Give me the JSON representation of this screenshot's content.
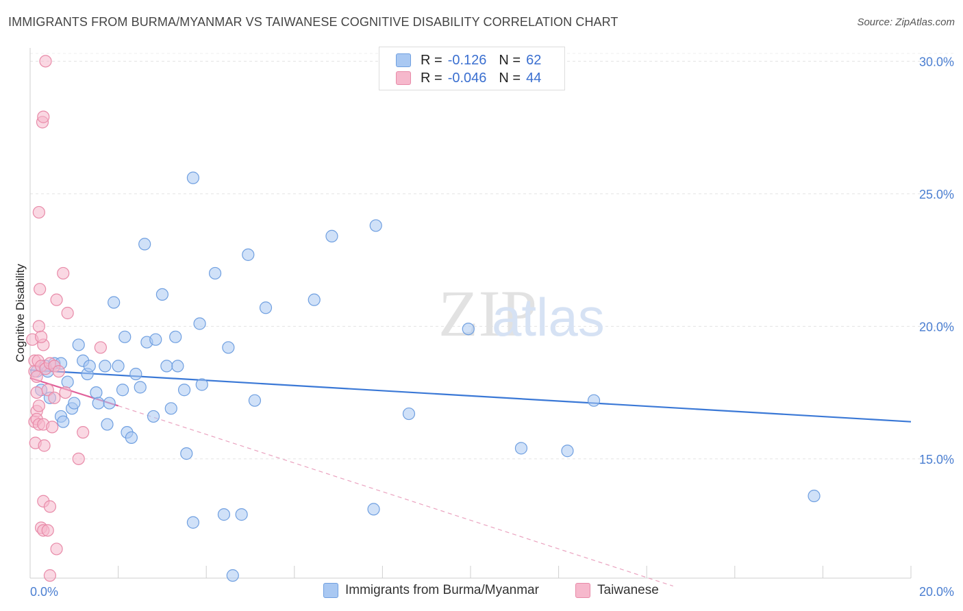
{
  "title": "IMMIGRANTS FROM BURMA/MYANMAR VS TAIWANESE COGNITIVE DISABILITY CORRELATION CHART",
  "source": "Source: ZipAtlas.com",
  "legend": {
    "r_label": "R =",
    "n_label": "N =",
    "items": [
      {
        "r": "-0.126",
        "n": "62",
        "color": "#a9c8f2",
        "border": "#6f9fe0"
      },
      {
        "r": "-0.046",
        "n": "44",
        "color": "#f6b8cc",
        "border": "#e88aa8"
      }
    ]
  },
  "bottom_legend": [
    "Immigrants from Burma/Myanmar",
    "Taiwanese"
  ],
  "chart_data": {
    "type": "scatter",
    "title": "IMMIGRANTS FROM BURMA/MYANMAR VS TAIWANESE COGNITIVE DISABILITY CORRELATION CHART",
    "xlabel": "",
    "ylabel": "Cognitive Disability",
    "xlim": [
      0,
      20
    ],
    "ylim": [
      10.5,
      30.5
    ],
    "x_tick_labels": [
      "0.0%",
      "20.0%"
    ],
    "y_ticks": [
      15,
      20,
      25,
      30
    ],
    "y_tick_labels": [
      "15.0%",
      "20.0%",
      "25.0%",
      "30.0%"
    ],
    "series": [
      {
        "name": "Immigrants from Burma/Myanmar",
        "color": "#a9c8f2",
        "stroke": "#6f9fe0",
        "trend": {
          "x0": 0,
          "y0": 18.35,
          "x1": 20,
          "y1": 16.4,
          "color": "#3a78d6"
        },
        "points": [
          [
            0.15,
            18.3
          ],
          [
            0.25,
            17.6
          ],
          [
            0.35,
            18.5
          ],
          [
            0.4,
            18.3
          ],
          [
            0.45,
            17.3
          ],
          [
            0.55,
            18.6
          ],
          [
            0.7,
            18.6
          ],
          [
            0.7,
            16.6
          ],
          [
            0.75,
            16.4
          ],
          [
            0.85,
            17.9
          ],
          [
            0.95,
            16.9
          ],
          [
            1.0,
            17.1
          ],
          [
            1.1,
            19.3
          ],
          [
            1.2,
            18.7
          ],
          [
            1.3,
            18.2
          ],
          [
            1.35,
            18.5
          ],
          [
            1.5,
            17.5
          ],
          [
            1.55,
            17.1
          ],
          [
            1.7,
            18.5
          ],
          [
            1.75,
            16.3
          ],
          [
            1.8,
            17.1
          ],
          [
            1.9,
            20.9
          ],
          [
            2.0,
            18.5
          ],
          [
            2.1,
            17.6
          ],
          [
            2.15,
            19.6
          ],
          [
            2.2,
            16.0
          ],
          [
            2.3,
            15.8
          ],
          [
            2.4,
            18.2
          ],
          [
            2.5,
            17.7
          ],
          [
            2.6,
            23.1
          ],
          [
            2.65,
            19.4
          ],
          [
            2.8,
            16.6
          ],
          [
            2.85,
            19.5
          ],
          [
            3.0,
            21.2
          ],
          [
            3.1,
            18.5
          ],
          [
            3.2,
            16.9
          ],
          [
            3.3,
            19.6
          ],
          [
            3.35,
            18.5
          ],
          [
            3.5,
            17.6
          ],
          [
            3.55,
            15.2
          ],
          [
            3.7,
            12.6
          ],
          [
            3.7,
            25.6
          ],
          [
            3.85,
            20.1
          ],
          [
            3.9,
            17.8
          ],
          [
            4.2,
            22.0
          ],
          [
            4.4,
            12.9
          ],
          [
            4.5,
            19.2
          ],
          [
            4.6,
            10.6
          ],
          [
            4.8,
            12.9
          ],
          [
            4.95,
            22.7
          ],
          [
            5.1,
            17.2
          ],
          [
            5.35,
            20.7
          ],
          [
            6.45,
            21.0
          ],
          [
            6.85,
            23.4
          ],
          [
            7.8,
            13.1
          ],
          [
            7.85,
            23.8
          ],
          [
            8.6,
            16.7
          ],
          [
            9.95,
            19.9
          ],
          [
            11.15,
            15.4
          ],
          [
            12.2,
            15.3
          ],
          [
            12.8,
            17.2
          ],
          [
            17.8,
            13.6
          ]
        ]
      },
      {
        "name": "Taiwanese",
        "color": "#f6b8cc",
        "stroke": "#e88aa8",
        "trend": {
          "x0": 0,
          "y0": 18.05,
          "x1": 2.0,
          "y1": 17.0,
          "color": "#e0609a"
        },
        "trend_ext": {
          "x0": 2.0,
          "y0": 17.0,
          "x1": 14.6,
          "y1": 10.2
        },
        "points": [
          [
            0.05,
            19.5
          ],
          [
            0.1,
            18.7
          ],
          [
            0.1,
            18.3
          ],
          [
            0.1,
            16.4
          ],
          [
            0.12,
            15.6
          ],
          [
            0.15,
            17.5
          ],
          [
            0.15,
            16.8
          ],
          [
            0.15,
            16.5
          ],
          [
            0.18,
            18.7
          ],
          [
            0.2,
            20.0
          ],
          [
            0.2,
            17.0
          ],
          [
            0.2,
            16.3
          ],
          [
            0.2,
            24.3
          ],
          [
            0.22,
            21.4
          ],
          [
            0.25,
            18.5
          ],
          [
            0.25,
            12.4
          ],
          [
            0.28,
            27.7
          ],
          [
            0.3,
            27.9
          ],
          [
            0.3,
            19.3
          ],
          [
            0.3,
            16.3
          ],
          [
            0.3,
            13.4
          ],
          [
            0.3,
            12.3
          ],
          [
            0.32,
            15.5
          ],
          [
            0.35,
            18.4
          ],
          [
            0.35,
            30.0
          ],
          [
            0.4,
            12.3
          ],
          [
            0.45,
            13.2
          ],
          [
            0.45,
            18.6
          ],
          [
            0.45,
            10.6
          ],
          [
            0.5,
            16.2
          ],
          [
            0.55,
            18.5
          ],
          [
            0.6,
            21.0
          ],
          [
            0.6,
            11.6
          ],
          [
            0.65,
            18.3
          ],
          [
            0.75,
            22.0
          ],
          [
            0.8,
            17.5
          ],
          [
            0.85,
            20.5
          ],
          [
            1.1,
            15.0
          ],
          [
            1.2,
            16.0
          ],
          [
            1.6,
            19.2
          ],
          [
            0.15,
            18.1
          ],
          [
            0.25,
            19.6
          ],
          [
            0.4,
            17.6
          ],
          [
            0.55,
            17.3
          ]
        ]
      }
    ]
  }
}
